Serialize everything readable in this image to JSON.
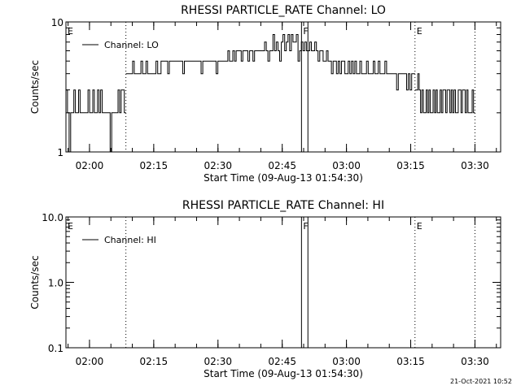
{
  "footer": {
    "timestamp": "21-Oct-2021 10:52"
  },
  "chart_data": [
    {
      "type": "line",
      "title": "RHESSI PARTICLE_RATE Channel: LO",
      "xlabel": "Start Time (09-Aug-13 01:54:30)",
      "ylabel": "Counts/sec",
      "yscale": "log",
      "xlim": [
        "01:54:30",
        "03:36:00"
      ],
      "ylim": [
        1,
        10
      ],
      "xticks": [
        "02:00",
        "02:15",
        "02:30",
        "02:45",
        "03:00",
        "03:15",
        "03:30"
      ],
      "yticks": [
        {
          "value": 1,
          "label": "1"
        },
        {
          "value": 10,
          "label": "10"
        }
      ],
      "legend": {
        "position": "top-left",
        "entries": [
          "Channel: LO"
        ]
      },
      "markers": [
        {
          "label": "E",
          "time": "01:54:30",
          "style": "dotted"
        },
        {
          "label": "",
          "time": "02:08:30",
          "style": "dotted"
        },
        {
          "label": "F",
          "time": "02:49:30",
          "style": "solid"
        },
        {
          "label": "",
          "time": "02:51:00",
          "style": "solid"
        },
        {
          "label": "E",
          "time": "03:16:00",
          "style": "dotted"
        },
        {
          "label": "",
          "time": "03:30:00",
          "style": "dotted"
        }
      ],
      "series": [
        {
          "name": "Channel: LO",
          "segments": [
            {
              "t0": "01:54:30",
              "t1": "02:08:30",
              "levels": [
                3,
                2,
                1,
                2,
                2,
                3,
                2,
                2,
                3,
                2,
                2,
                2,
                2,
                2,
                3,
                2,
                2,
                3,
                2,
                2,
                3,
                2,
                3,
                2,
                2,
                2,
                2,
                2,
                1,
                2,
                2,
                2,
                2,
                3,
                2,
                3,
                3,
                2
              ]
            },
            {
              "t0": "02:08:30",
              "t1": "03:16:00",
              "levels": [
                4,
                4,
                4,
                4,
                5,
                4,
                4,
                4,
                4,
                5,
                4,
                4,
                5,
                4,
                4,
                4,
                4,
                4,
                5,
                4,
                4,
                5,
                5,
                5,
                5,
                4,
                5,
                5,
                5,
                5,
                5,
                5,
                5,
                5,
                4,
                5,
                5,
                5,
                5,
                5,
                5,
                5,
                5,
                5,
                5,
                4,
                5,
                5,
                5,
                5,
                5,
                5,
                5,
                5,
                4,
                5,
                5,
                5,
                5,
                5,
                5,
                6,
                5,
                5,
                6,
                5,
                6,
                6,
                6,
                5,
                6,
                6,
                6,
                5,
                6,
                6,
                5,
                6,
                6,
                6,
                6,
                6,
                6,
                7,
                6,
                5,
                6,
                6,
                8,
                6,
                7,
                6,
                5,
                7,
                8,
                6,
                7,
                8,
                6,
                8,
                7,
                7,
                8,
                5,
                6,
                7,
                6,
                7,
                6,
                6,
                7,
                6,
                6,
                7,
                6,
                5,
                6,
                6,
                5,
                5,
                6,
                5,
                5,
                4,
                5,
                5,
                4,
                5,
                4,
                5,
                5,
                4,
                4,
                5,
                4,
                5,
                4,
                5,
                4,
                4,
                5,
                4,
                4,
                4,
                5,
                4,
                4,
                4,
                5,
                4,
                4,
                5,
                4,
                4,
                4,
                5,
                4,
                4,
                4,
                4,
                4,
                4,
                3,
                4,
                4,
                4,
                4,
                4,
                3,
                4,
                3,
                4,
                4
              ]
            },
            {
              "t0": "03:16:00",
              "t1": "03:30:00",
              "levels": [
                3,
                3,
                4,
                3,
                2,
                3,
                2,
                2,
                3,
                2,
                3,
                2,
                2,
                3,
                2,
                3,
                2,
                2,
                3,
                2,
                3,
                3,
                2,
                3,
                3,
                2,
                3,
                2,
                3,
                2,
                2,
                3,
                3,
                2,
                3,
                3,
                2,
                3,
                2,
                2,
                2,
                3,
                2
              ]
            }
          ]
        }
      ]
    },
    {
      "type": "line",
      "title": "RHESSI PARTICLE_RATE Channel: HI",
      "xlabel": "Start Time (09-Aug-13 01:54:30)",
      "ylabel": "Counts/sec",
      "yscale": "log",
      "xlim": [
        "01:54:30",
        "03:36:00"
      ],
      "ylim": [
        0.1,
        10.0
      ],
      "xticks": [
        "02:00",
        "02:15",
        "02:30",
        "02:45",
        "03:00",
        "03:15",
        "03:30"
      ],
      "yticks": [
        {
          "value": 0.1,
          "label": "0.1"
        },
        {
          "value": 1.0,
          "label": "1.0"
        },
        {
          "value": 10.0,
          "label": "10.0"
        }
      ],
      "legend": {
        "position": "top-left",
        "entries": [
          "Channel: HI"
        ]
      },
      "markers": [
        {
          "label": "E",
          "time": "01:54:30",
          "style": "dotted"
        },
        {
          "label": "",
          "time": "02:08:30",
          "style": "dotted"
        },
        {
          "label": "F",
          "time": "02:49:30",
          "style": "solid"
        },
        {
          "label": "",
          "time": "02:51:00",
          "style": "solid"
        },
        {
          "label": "E",
          "time": "03:16:00",
          "style": "dotted"
        },
        {
          "label": "",
          "time": "03:30:00",
          "style": "dotted"
        }
      ],
      "series": [
        {
          "name": "Channel: HI",
          "segments": []
        }
      ]
    }
  ]
}
